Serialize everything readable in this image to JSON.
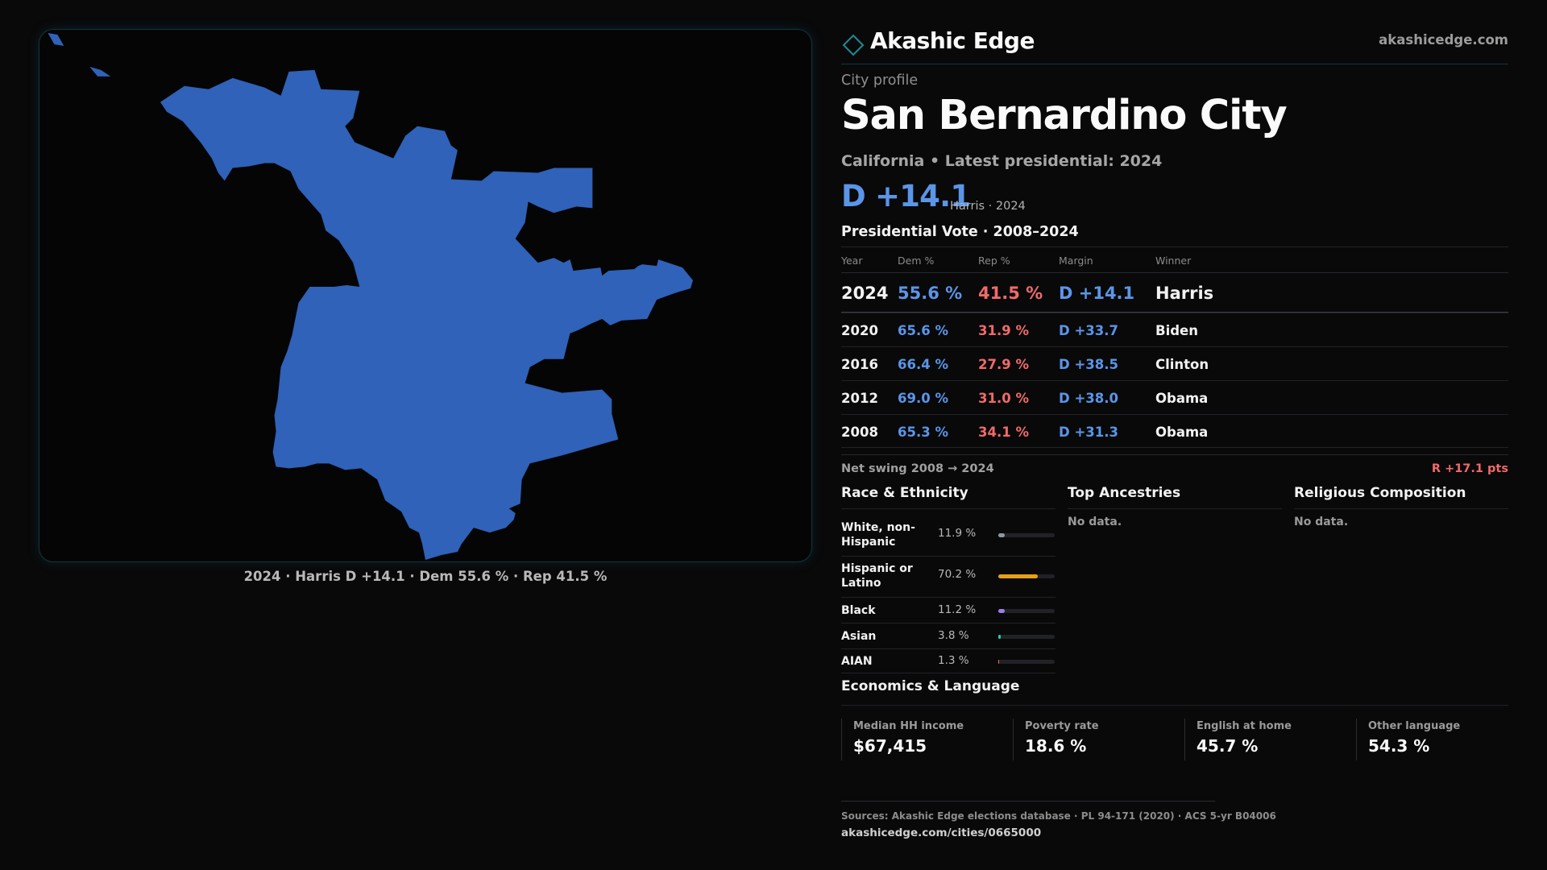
{
  "brand": {
    "name": "Akashic Edge",
    "site": "akashicedge.com"
  },
  "profile": {
    "kicker": "City profile",
    "city": "San Bernardino City",
    "subtitle": "California • Latest presidential: 2024",
    "margin": "D +14.1",
    "margin_note": "Harris · 2024"
  },
  "map": {
    "caption": "2024 · Harris D +14.1 · Dem 55.6 % · Rep 41.5 %",
    "fill_color": "#2f62b8"
  },
  "vote": {
    "title": "Presidential Vote · 2008–2024",
    "headers": {
      "year": "Year",
      "dem": "Dem %",
      "rep": "Rep %",
      "margin": "Margin",
      "winner": "Winner"
    },
    "rows": [
      {
        "year": "2024",
        "dem": "55.6 %",
        "rep": "41.5 %",
        "margin": "D +14.1",
        "winner": "Harris"
      },
      {
        "year": "2020",
        "dem": "65.6 %",
        "rep": "31.9 %",
        "margin": "D +33.7",
        "winner": "Biden"
      },
      {
        "year": "2016",
        "dem": "66.4 %",
        "rep": "27.9 %",
        "margin": "D +38.5",
        "winner": "Clinton"
      },
      {
        "year": "2012",
        "dem": "69.0 %",
        "rep": "31.0 %",
        "margin": "D +38.0",
        "winner": "Obama"
      },
      {
        "year": "2008",
        "dem": "65.3 %",
        "rep": "34.1 %",
        "margin": "D +31.3",
        "winner": "Obama"
      }
    ],
    "swing_label": "Net swing 2008 → 2024",
    "swing_value": "R +17.1 pts"
  },
  "race": {
    "title": "Race & Ethnicity",
    "rows": [
      {
        "label": "White, non-Hispanic",
        "pct": "11.9 %",
        "value": 11.9,
        "color": "#8f97a3"
      },
      {
        "label": "Hispanic or Latino",
        "pct": "70.2 %",
        "value": 70.2,
        "color": "#e6a019"
      },
      {
        "label": "Black",
        "pct": "11.2 %",
        "value": 11.2,
        "color": "#9b7ff0"
      },
      {
        "label": "Asian",
        "pct": "3.8 %",
        "value": 3.8,
        "color": "#2fc7b0"
      },
      {
        "label": "AIAN",
        "pct": "1.3 %",
        "value": 1.3,
        "color": "#e0744a"
      }
    ]
  },
  "ancestries": {
    "title": "Top Ancestries",
    "empty": "No data."
  },
  "religion": {
    "title": "Religious Composition",
    "empty": "No data."
  },
  "economics": {
    "title": "Economics & Language",
    "cards": [
      {
        "label": "Median HH income",
        "value": "$67,415"
      },
      {
        "label": "Poverty rate",
        "value": "18.6 %"
      },
      {
        "label": "English at home",
        "value": "45.7 %"
      },
      {
        "label": "Other language",
        "value": "54.3 %"
      }
    ]
  },
  "footer": {
    "sources": "Sources: Akashic Edge elections database · PL 94-171 (2020) · ACS 5-yr B04006",
    "permalink": "akashicedge.com/cities/0665000"
  }
}
